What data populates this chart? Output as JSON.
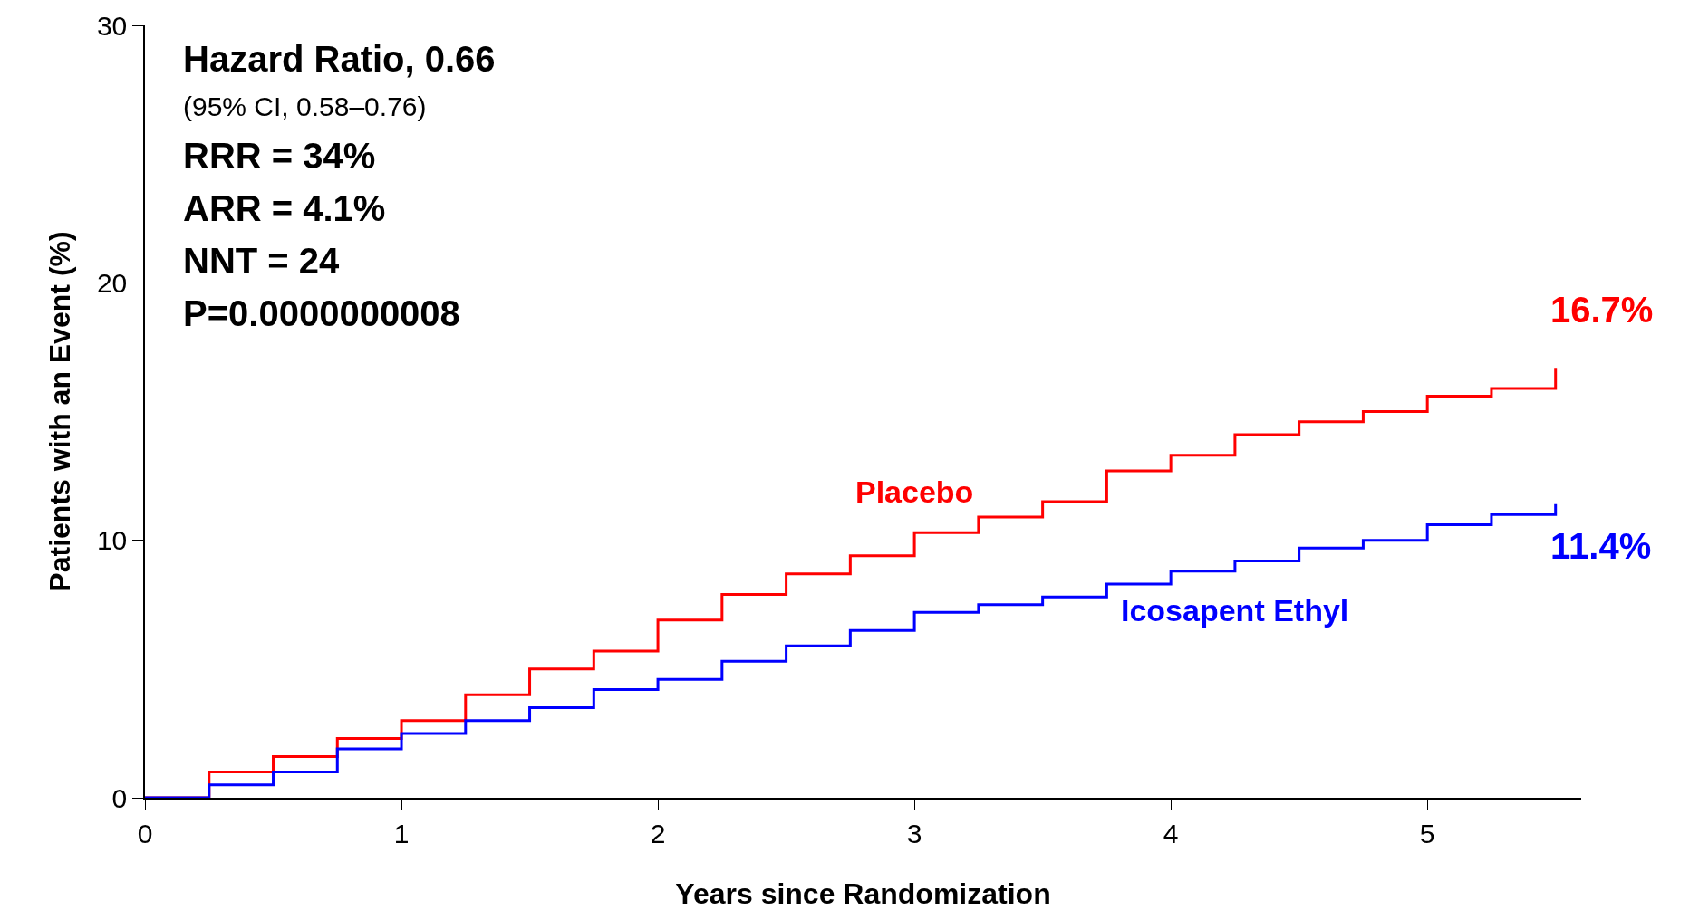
{
  "chart_data": {
    "type": "step",
    "xlabel": "Years since Randomization",
    "ylabel": "Patients with an Event (%)",
    "xlim": [
      0,
      5.6
    ],
    "xticks": [
      0,
      1,
      2,
      3,
      4,
      5
    ],
    "ylim": [
      0,
      30
    ],
    "yticks": [
      0,
      10,
      20,
      30
    ],
    "grid": false,
    "legend": false,
    "marker": "none",
    "line_style": "solid",
    "x": [
      0,
      0.25,
      0.5,
      0.75,
      1,
      1.25,
      1.5,
      1.75,
      2,
      2.25,
      2.5,
      2.75,
      3,
      3.25,
      3.5,
      3.75,
      4,
      4.25,
      4.5,
      4.75,
      5,
      5.25,
      5.5
    ],
    "series": [
      {
        "name": "Placebo",
        "color": "#ff0000",
        "values": [
          0,
          1.0,
          1.6,
          2.3,
          3.0,
          4.0,
          5.0,
          5.7,
          6.9,
          7.9,
          8.7,
          9.4,
          10.3,
          10.9,
          11.5,
          12.7,
          13.3,
          14.1,
          14.6,
          15.0,
          15.6,
          15.9,
          16.7
        ]
      },
      {
        "name": "Icosapent Ethyl",
        "color": "#0000ff",
        "values": [
          0,
          0.5,
          1.0,
          1.9,
          2.5,
          3.0,
          3.5,
          4.2,
          4.6,
          5.3,
          5.9,
          6.5,
          7.2,
          7.5,
          7.8,
          8.3,
          8.8,
          9.2,
          9.7,
          10.0,
          10.6,
          11.0,
          11.4
        ]
      }
    ],
    "annotations": [
      "Hazard Ratio, 0.66",
      "(95% CI, 0.58–0.76)",
      "RRR = 34%",
      "ARR = 4.1%",
      "NNT = 24",
      "P=0.0000000008",
      {
        "text": "16.7%",
        "x": 5.5,
        "y": 16.7
      },
      {
        "text": "11.4%",
        "x": 5.5,
        "y": 11.4
      }
    ]
  }
}
